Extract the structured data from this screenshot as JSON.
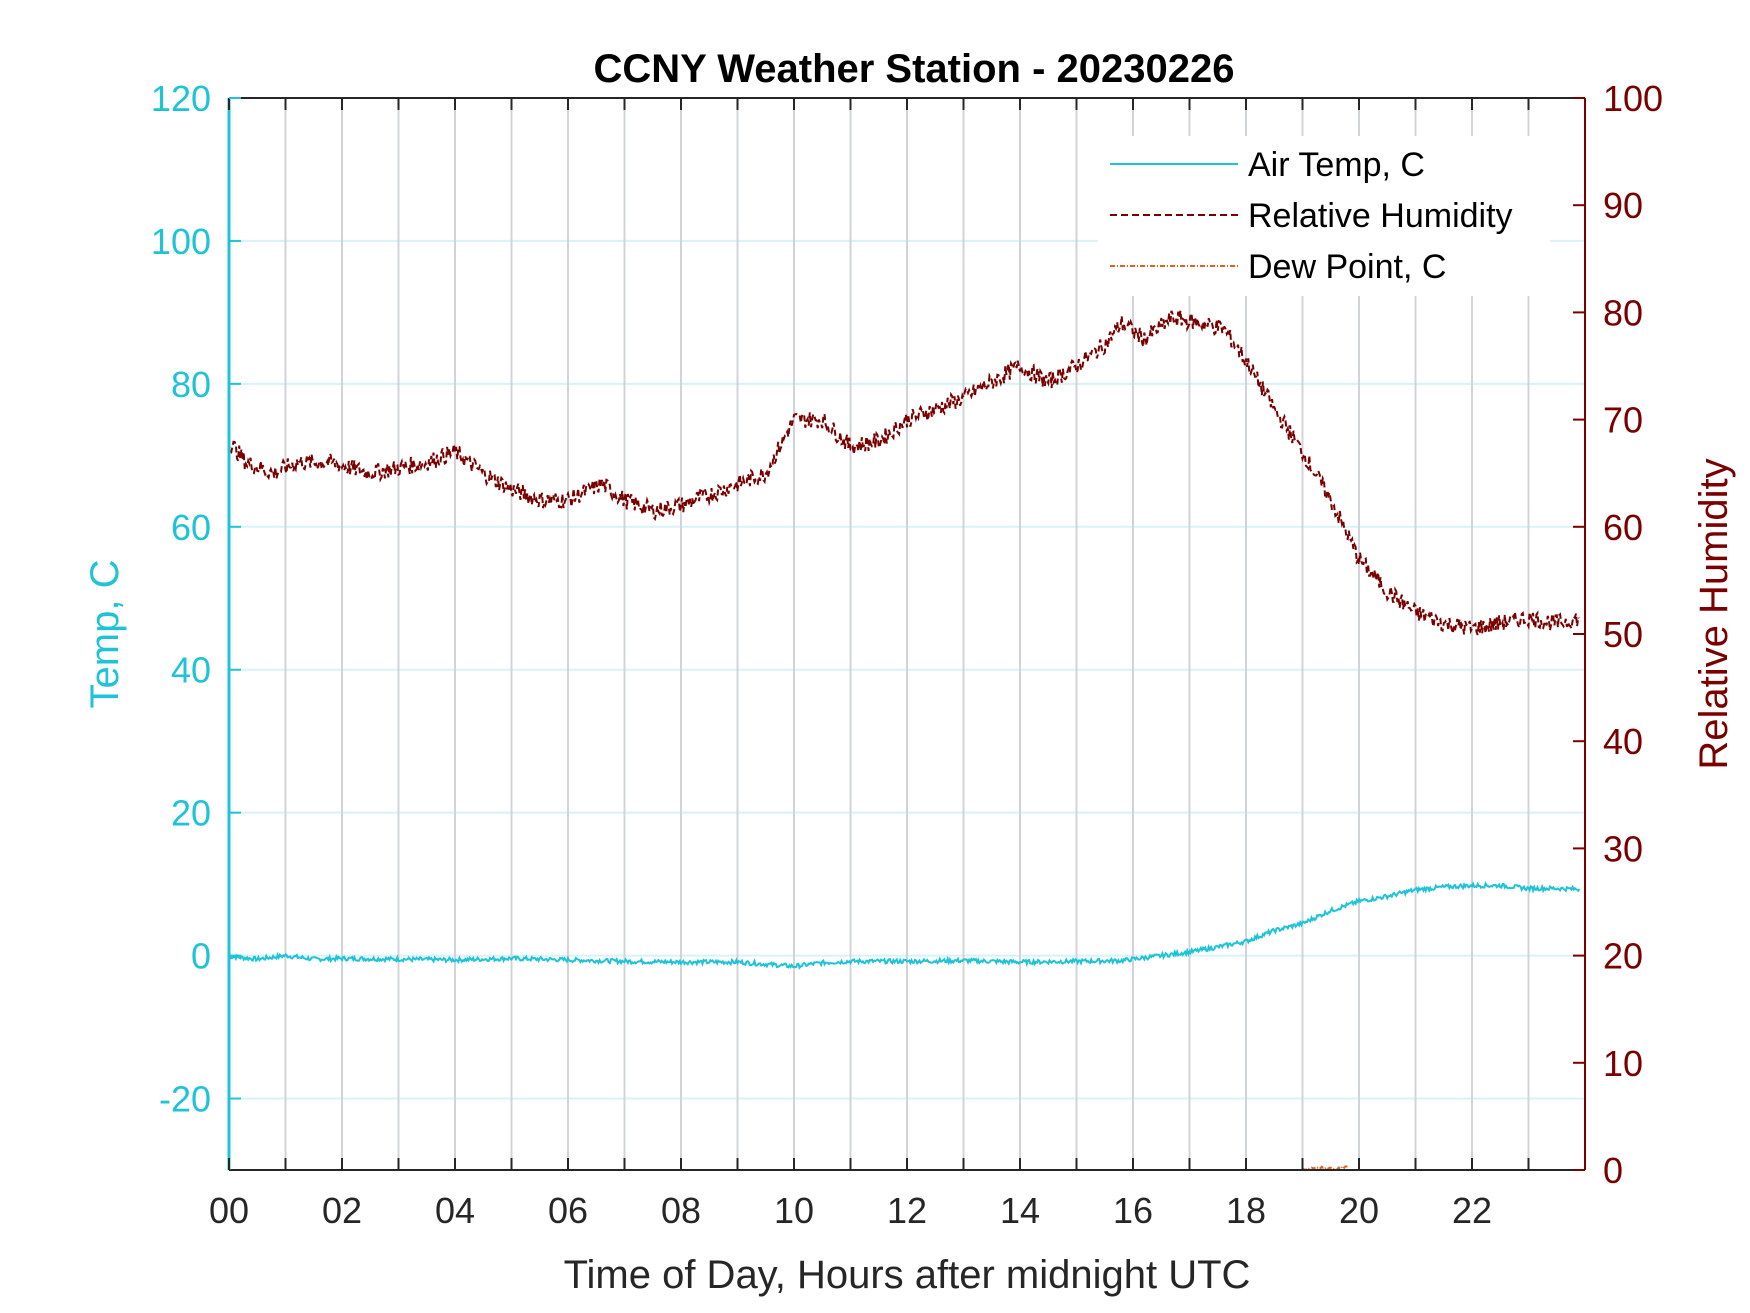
{
  "chart_data": {
    "type": "line",
    "title": "CCNY Weather Station - 20230226",
    "xlabel": "Time of Day, Hours after midnight UTC",
    "ylabel_left": "Temp, C",
    "ylabel_right": "Relative Humidity",
    "xlim": [
      0,
      24
    ],
    "ylim_left": [
      -30,
      120
    ],
    "ylim_right": [
      0,
      100
    ],
    "x_ticks": [
      0,
      2,
      4,
      6,
      8,
      10,
      12,
      14,
      16,
      18,
      20,
      22
    ],
    "x_tick_labels": [
      "00",
      "02",
      "04",
      "06",
      "08",
      "10",
      "12",
      "14",
      "16",
      "18",
      "20",
      "22"
    ],
    "y_left_ticks": [
      -20,
      0,
      20,
      40,
      60,
      80,
      100,
      120
    ],
    "y_left_tick_labels": [
      "-20",
      "0",
      "20",
      "40",
      "60",
      "80",
      "100",
      "120"
    ],
    "y_right_ticks": [
      0,
      10,
      20,
      30,
      40,
      50,
      60,
      70,
      80,
      90,
      100
    ],
    "y_right_tick_labels": [
      "0",
      "10",
      "20",
      "30",
      "40",
      "50",
      "60",
      "70",
      "80",
      "90",
      "100"
    ],
    "grid": "vertical every hour, horizontal light at left-axis ticks",
    "legend_position": "top-right",
    "colors": {
      "temp": "#1fc3d8",
      "humidity": "#7a0000",
      "dewpoint": "#e0621c",
      "left_axis": "#1fc3d8",
      "right_axis": "#7a0000",
      "grid_v": "#d0d4da",
      "grid_h": "#d8f2f6"
    },
    "series": [
      {
        "name": "Air Temp, C",
        "axis": "left",
        "style": "solid",
        "x": [
          0,
          0.5,
          1,
          1.5,
          2,
          3,
          4,
          5,
          6,
          7,
          8,
          9,
          10,
          10.5,
          11,
          12,
          13,
          14,
          15,
          15.8,
          16.5,
          17,
          17.5,
          18,
          18.5,
          19,
          19.5,
          20,
          20.5,
          21,
          21.5,
          22,
          22.5,
          23,
          23.5,
          23.9
        ],
        "values": [
          -0.1,
          -0.5,
          0,
          -0.5,
          -0.4,
          -0.5,
          -0.6,
          -0.4,
          -0.6,
          -0.8,
          -0.9,
          -0.9,
          -1.5,
          -1.0,
          -0.8,
          -0.8,
          -0.7,
          -0.9,
          -0.8,
          -0.7,
          0.0,
          0.5,
          1.2,
          2.0,
          3.5,
          4.5,
          6.3,
          7.6,
          8.3,
          9.2,
          9.6,
          9.8,
          9.8,
          9.4,
          9.4,
          9.3
        ]
      },
      {
        "name": "Relative Humidity",
        "axis": "right",
        "style": "dashed",
        "x": [
          0,
          0.3,
          0.8,
          1.2,
          1.8,
          2.5,
          3.0,
          3.5,
          4.0,
          4.5,
          5.0,
          5.5,
          6.0,
          6.6,
          7.0,
          7.5,
          8.0,
          8.5,
          9.0,
          9.5,
          10.0,
          10.5,
          11.0,
          11.5,
          12.0,
          12.5,
          13.0,
          13.5,
          14.0,
          14.5,
          15.0,
          15.5,
          15.8,
          16.2,
          16.7,
          17.2,
          17.6,
          18.0,
          18.5,
          19.0,
          19.5,
          20.0,
          20.5,
          21.0,
          21.5,
          22.0,
          22.5,
          23.0,
          23.5,
          23.9
        ],
        "values": [
          68,
          66,
          65,
          66,
          66,
          65,
          65.5,
          66,
          67,
          65,
          63.5,
          62.5,
          62.5,
          64,
          62.5,
          61.5,
          62,
          63,
          64,
          65,
          70,
          70,
          67.5,
          68,
          70,
          71,
          72,
          73.5,
          75,
          73.5,
          75,
          77,
          79,
          77.5,
          79.5,
          79,
          78.5,
          75.5,
          71,
          67,
          62.5,
          57,
          54,
          52,
          51,
          50.5,
          51,
          51.5,
          51,
          51.5
        ]
      },
      {
        "name": "Dew Point, C",
        "axis": "left",
        "style": "dash-dot",
        "x": [
          19.0,
          19.3,
          19.6,
          19.8
        ],
        "values": [
          -30.0,
          -29.6,
          -29.8,
          -29.5
        ]
      }
    ]
  }
}
